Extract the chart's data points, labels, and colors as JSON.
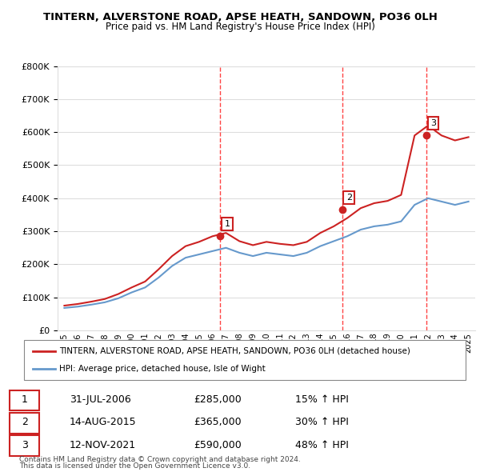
{
  "title": "TINTERN, ALVERSTONE ROAD, APSE HEATH, SANDOWN, PO36 0LH",
  "subtitle": "Price paid vs. HM Land Registry's House Price Index (HPI)",
  "property_label": "TINTERN, ALVERSTONE ROAD, APSE HEATH, SANDOWN, PO36 0LH (detached house)",
  "hpi_label": "HPI: Average price, detached house, Isle of Wight",
  "footer1": "Contains HM Land Registry data © Crown copyright and database right 2024.",
  "footer2": "This data is licensed under the Open Government Licence v3.0.",
  "sales": [
    {
      "num": 1,
      "date": "31-JUL-2006",
      "price": 285000,
      "hpi_pct": "15% ↑ HPI",
      "x": 2006.58
    },
    {
      "num": 2,
      "date": "14-AUG-2015",
      "price": 365000,
      "hpi_pct": "30% ↑ HPI",
      "x": 2015.62
    },
    {
      "num": 3,
      "date": "12-NOV-2021",
      "price": 590000,
      "hpi_pct": "48% ↑ HPI",
      "x": 2021.87
    }
  ],
  "hpi_color": "#6699cc",
  "property_color": "#cc2222",
  "vline_color": "#ff4444",
  "grid_color": "#dddddd",
  "ylim": [
    0,
    800000
  ],
  "xlim_start": 1994.5,
  "xlim_end": 2025.5,
  "hpi_data": {
    "years": [
      1995,
      1996,
      1997,
      1998,
      1999,
      2000,
      2001,
      2002,
      2003,
      2004,
      2005,
      2006,
      2007,
      2008,
      2009,
      2010,
      2011,
      2012,
      2013,
      2014,
      2015,
      2016,
      2017,
      2018,
      2019,
      2020,
      2021,
      2022,
      2023,
      2024,
      2025
    ],
    "values": [
      68000,
      72000,
      78000,
      85000,
      97000,
      115000,
      130000,
      160000,
      195000,
      220000,
      230000,
      240000,
      250000,
      235000,
      225000,
      235000,
      230000,
      225000,
      235000,
      255000,
      270000,
      285000,
      305000,
      315000,
      320000,
      330000,
      380000,
      400000,
      390000,
      380000,
      390000
    ]
  },
  "property_data": {
    "years": [
      1995,
      1996,
      1997,
      1998,
      1999,
      2000,
      2001,
      2002,
      2003,
      2004,
      2005,
      2006,
      2007,
      2008,
      2009,
      2010,
      2011,
      2012,
      2013,
      2014,
      2015,
      2016,
      2017,
      2018,
      2019,
      2020,
      2021,
      2022,
      2023,
      2024,
      2025
    ],
    "values": [
      75000,
      80000,
      87000,
      95000,
      110000,
      130000,
      148000,
      185000,
      225000,
      255000,
      268000,
      285000,
      295000,
      270000,
      258000,
      268000,
      262000,
      258000,
      268000,
      295000,
      315000,
      340000,
      370000,
      385000,
      392000,
      410000,
      590000,
      620000,
      590000,
      575000,
      585000
    ]
  }
}
